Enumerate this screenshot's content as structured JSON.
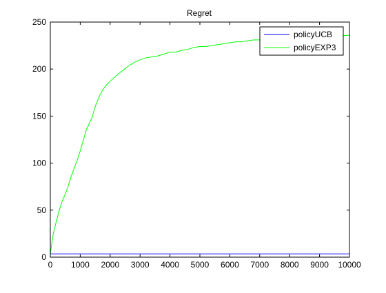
{
  "chart_data": {
    "type": "line",
    "title": "Regret",
    "xlabel": "",
    "ylabel": "",
    "xlim": [
      0,
      10000
    ],
    "ylim": [
      0,
      250
    ],
    "x_ticks": [
      0,
      1000,
      2000,
      3000,
      4000,
      5000,
      6000,
      7000,
      8000,
      9000,
      10000
    ],
    "y_ticks": [
      0,
      50,
      100,
      150,
      200,
      250
    ],
    "grid": false,
    "legend_position": "top-right",
    "series": [
      {
        "name": "policyUCB",
        "color": "#0000ff",
        "x": [
          0,
          10000
        ],
        "y": [
          3.5,
          3.5
        ]
      },
      {
        "name": "policyEXP3",
        "color": "#00ff00",
        "x": [
          0,
          50,
          100,
          200,
          300,
          400,
          500,
          600,
          700,
          800,
          900,
          1000,
          1100,
          1200,
          1300,
          1400,
          1500,
          1600,
          1700,
          1800,
          1900,
          2000,
          2200,
          2400,
          2600,
          2800,
          3000,
          3200,
          3400,
          3600,
          3800,
          4000,
          4200,
          4400,
          4600,
          4800,
          5000,
          5200,
          5400,
          5600,
          5800,
          6000,
          6200,
          6400,
          6600,
          6800,
          7000,
          7500,
          8000,
          8500,
          9000,
          9500,
          10000
        ],
        "y": [
          3,
          15,
          25,
          38,
          50,
          60,
          67,
          76,
          86,
          95,
          103,
          113,
          124,
          135,
          142,
          149,
          160,
          168,
          175,
          180,
          184,
          187,
          193,
          198,
          203,
          207,
          210,
          212,
          213,
          214,
          216,
          218,
          218,
          220,
          221,
          223,
          224,
          224,
          225,
          226,
          227,
          228,
          229,
          229,
          230,
          231,
          231,
          232,
          233,
          233,
          234,
          235,
          236
        ]
      }
    ]
  }
}
